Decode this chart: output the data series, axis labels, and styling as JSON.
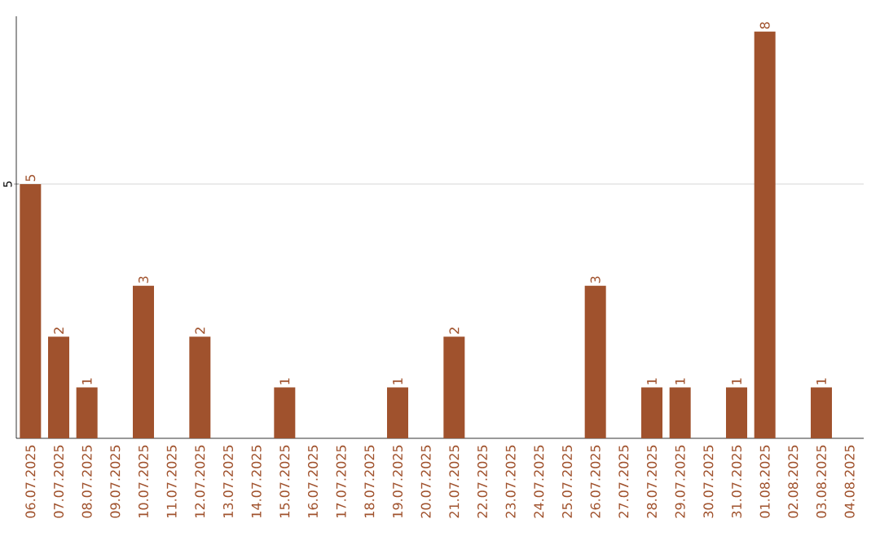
{
  "chart_data": {
    "type": "bar",
    "categories": [
      "06.07.2025",
      "07.07.2025",
      "08.07.2025",
      "09.07.2025",
      "10.07.2025",
      "11.07.2025",
      "12.07.2025",
      "13.07.2025",
      "14.07.2025",
      "15.07.2025",
      "16.07.2025",
      "17.07.2025",
      "18.07.2025",
      "19.07.2025",
      "20.07.2025",
      "21.07.2025",
      "22.07.2025",
      "23.07.2025",
      "24.07.2025",
      "25.07.2025",
      "26.07.2025",
      "27.07.2025",
      "28.07.2025",
      "29.07.2025",
      "30.07.2025",
      "31.07.2025",
      "01.08.2025",
      "02.08.2025",
      "03.08.2025",
      "04.08.2025"
    ],
    "values": [
      5,
      2,
      1,
      0,
      3,
      0,
      2,
      0,
      0,
      1,
      0,
      0,
      0,
      1,
      0,
      2,
      0,
      0,
      0,
      0,
      3,
      0,
      1,
      1,
      0,
      1,
      8,
      0,
      1,
      0
    ],
    "value_labels": [
      "5",
      "2",
      "1",
      null,
      "3",
      null,
      "2",
      null,
      null,
      "1",
      null,
      null,
      null,
      "1",
      null,
      "2",
      null,
      null,
      null,
      null,
      "3",
      null,
      "1",
      "1",
      null,
      "1",
      "8",
      null,
      "1",
      null
    ],
    "color": "#a0522d",
    "ylim": [
      0,
      8.3
    ],
    "yticks": [
      5
    ],
    "grid": "y"
  }
}
